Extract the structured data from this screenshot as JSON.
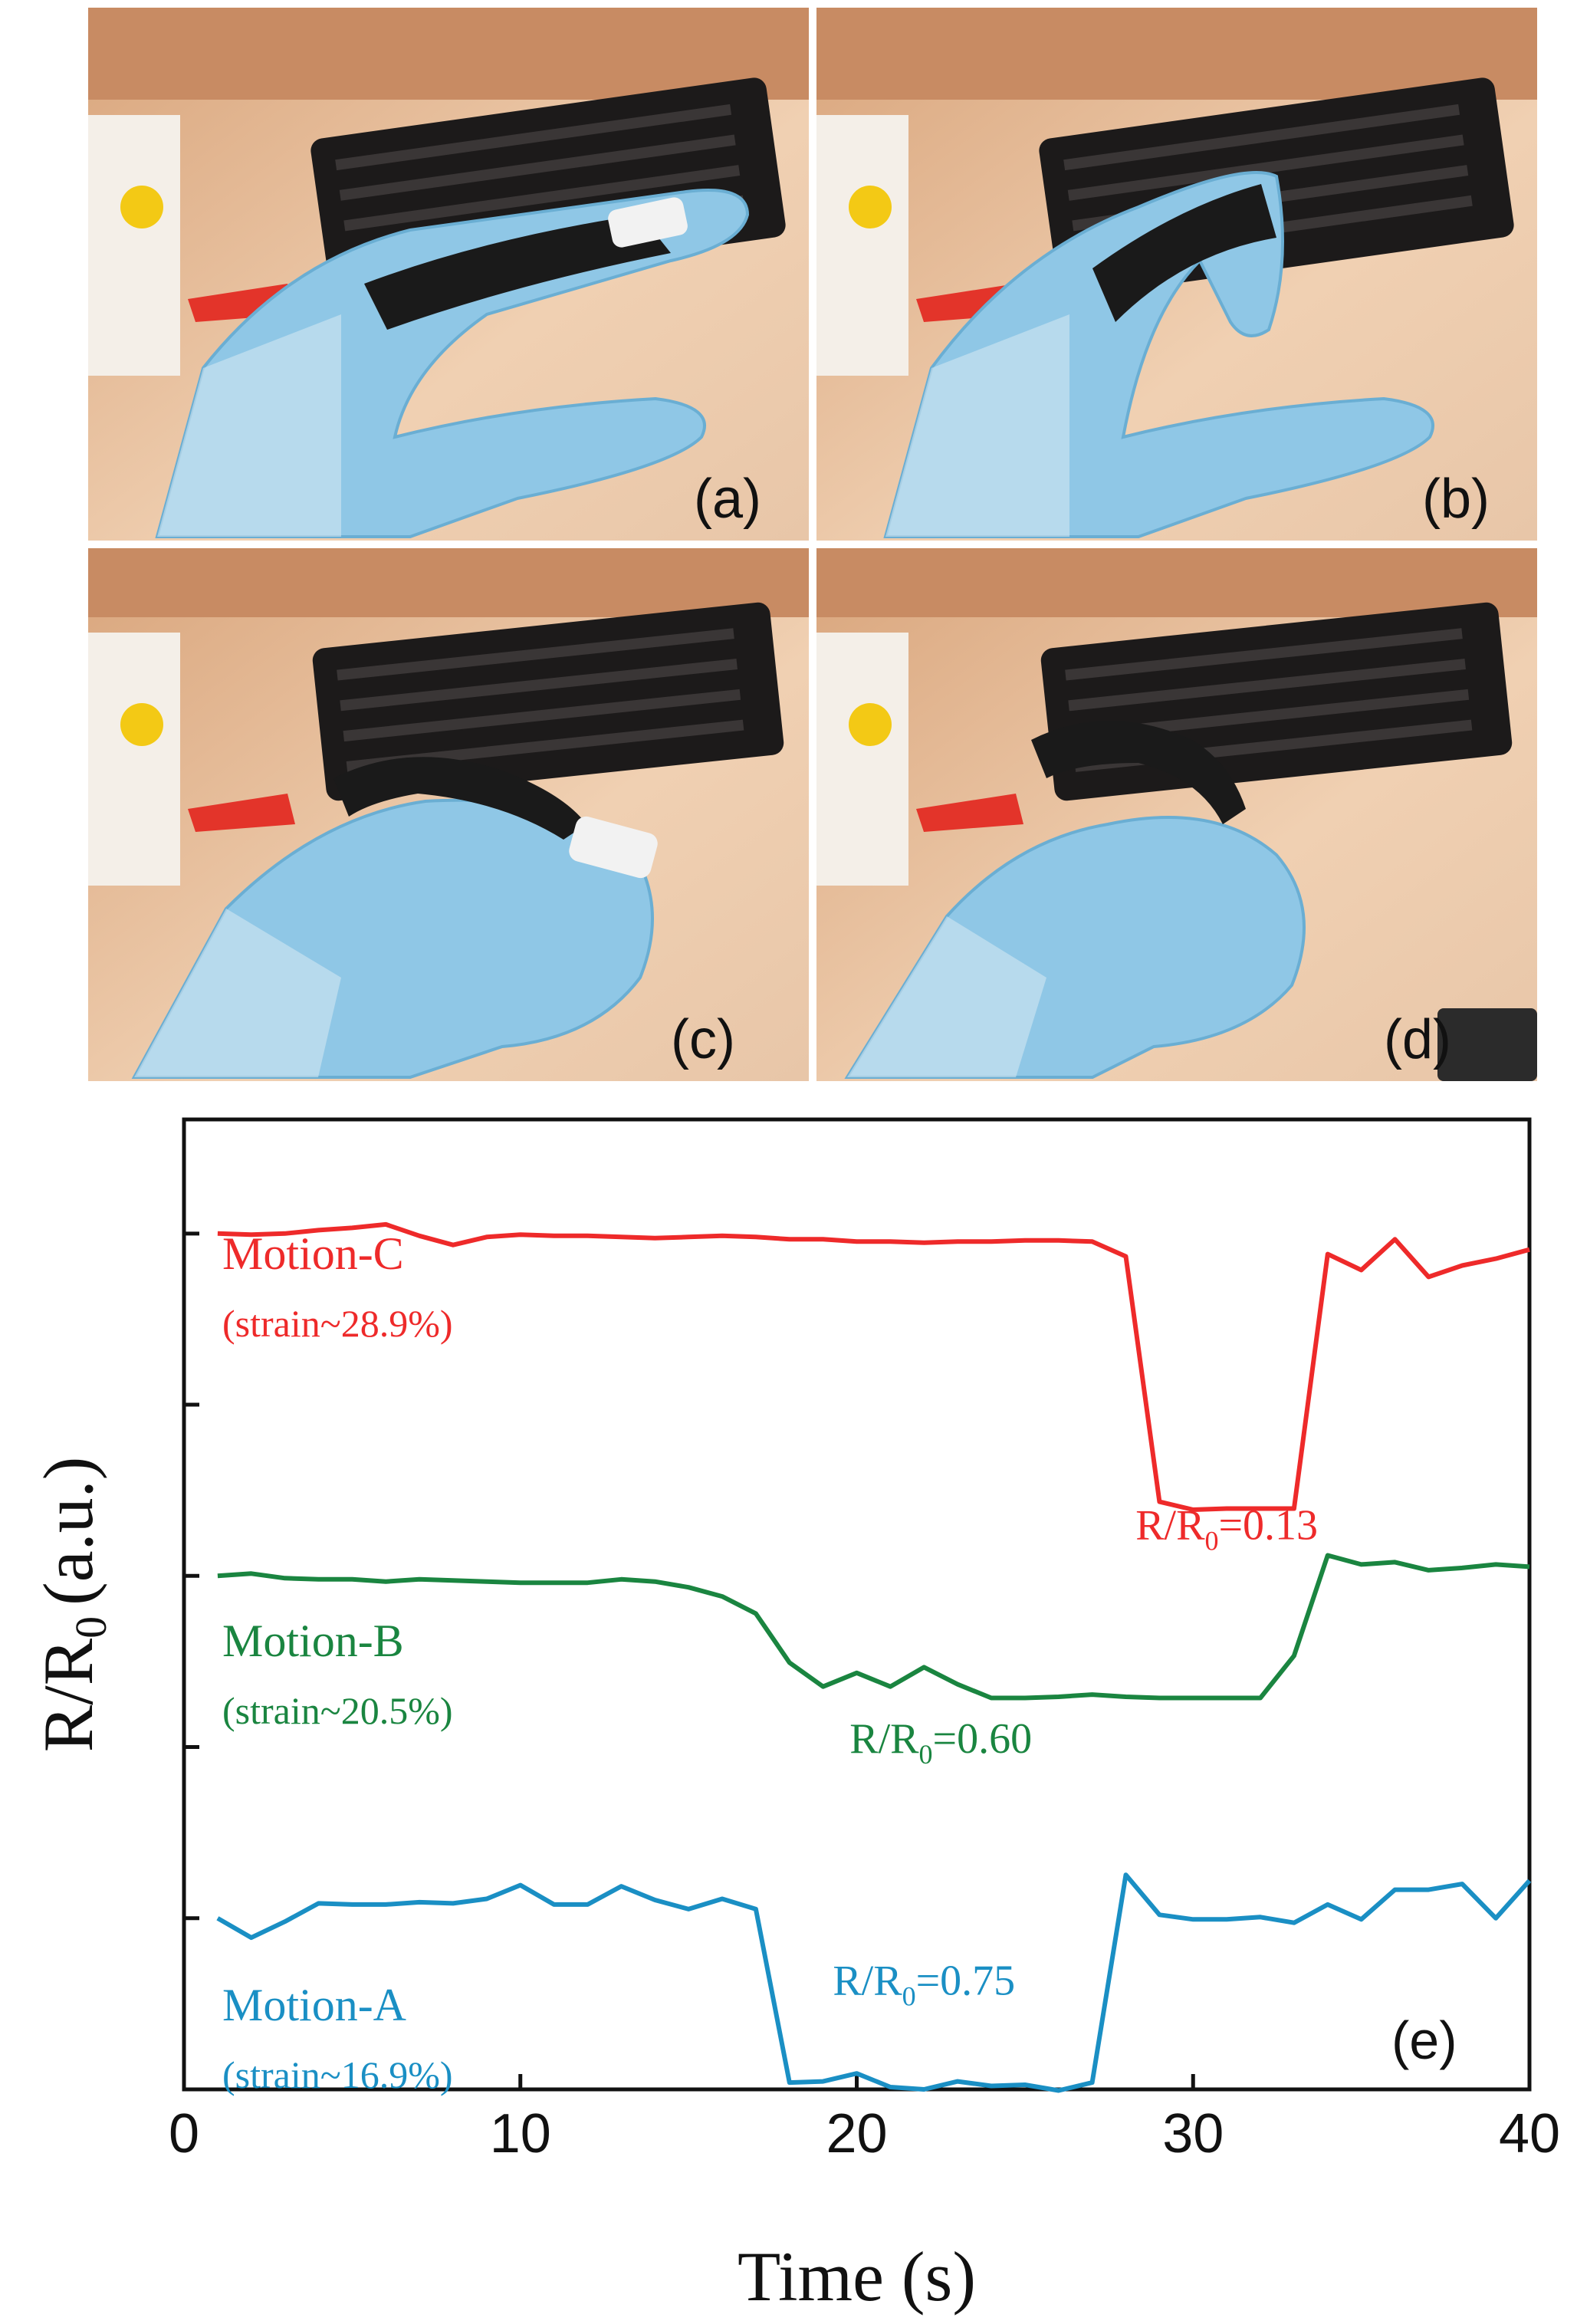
{
  "figure": {
    "panel_labels": [
      "(a)",
      "(b)",
      "(c)",
      "(d)"
    ],
    "chart_panel_label": "(e)"
  },
  "chart_data": {
    "type": "line",
    "xlabel": "Time (s)",
    "ylabel": "R/R",
    "ylabel_sub": "0",
    "ylabel_unit": "(a.u.)",
    "xlim": [
      0,
      40
    ],
    "ylim": [
      0,
      8.5
    ],
    "xticks": [
      0,
      10,
      20,
      30,
      40
    ],
    "ytick_values": [
      1.5,
      3.0,
      4.5,
      6.0,
      7.5
    ],
    "show_ytick_labels": false,
    "grid": false,
    "series": [
      {
        "name": "Motion-C",
        "strain": "(strain~28.9%)",
        "color": "#ee2a2a",
        "annotation": {
          "text": "R/R",
          "sub": "0",
          "value": "=0.13",
          "x": 31,
          "y": 4.82
        },
        "x": [
          1,
          2,
          3,
          4,
          5,
          6,
          7,
          8,
          9,
          10,
          11,
          12,
          13,
          14,
          15,
          16,
          17,
          18,
          19,
          20,
          21,
          22,
          23,
          24,
          25,
          26,
          27,
          28,
          29,
          30,
          31,
          32,
          33,
          34,
          35,
          36,
          37,
          38,
          39,
          40
        ],
        "y": [
          7.5,
          7.49,
          7.5,
          7.53,
          7.55,
          7.58,
          7.48,
          7.4,
          7.47,
          7.49,
          7.48,
          7.48,
          7.47,
          7.46,
          7.47,
          7.48,
          7.47,
          7.45,
          7.45,
          7.43,
          7.43,
          7.42,
          7.43,
          7.43,
          7.44,
          7.44,
          7.43,
          7.3,
          5.15,
          5.08,
          5.09,
          5.09,
          5.09,
          7.32,
          7.18,
          7.45,
          7.12,
          7.22,
          7.28,
          7.36
        ]
      },
      {
        "name": "Motion-B",
        "strain": "(strain~20.5%)",
        "color": "#1a8540",
        "annotation": {
          "text": "R/R",
          "sub": "0",
          "value": "=0.60",
          "x": 22.5,
          "y": 2.95
        },
        "x": [
          1,
          2,
          3,
          4,
          5,
          6,
          7,
          8,
          9,
          10,
          11,
          12,
          13,
          14,
          15,
          16,
          17,
          18,
          19,
          20,
          21,
          22,
          23,
          24,
          25,
          26,
          27,
          28,
          29,
          30,
          31,
          32,
          33,
          34,
          35,
          36,
          37,
          38,
          39,
          40
        ],
        "y": [
          4.5,
          4.52,
          4.48,
          4.47,
          4.47,
          4.45,
          4.47,
          4.46,
          4.45,
          4.44,
          4.44,
          4.44,
          4.47,
          4.45,
          4.4,
          4.32,
          4.17,
          3.74,
          3.53,
          3.65,
          3.53,
          3.7,
          3.55,
          3.43,
          3.43,
          3.44,
          3.46,
          3.44,
          3.43,
          3.43,
          3.43,
          3.43,
          3.8,
          4.68,
          4.6,
          4.62,
          4.55,
          4.57,
          4.6,
          4.58
        ]
      },
      {
        "name": "Motion-A",
        "strain": "(strain~16.9%)",
        "color": "#1a8fc4",
        "annotation": {
          "text": "R/R",
          "sub": "0",
          "value": "=0.75",
          "x": 22,
          "y": 0.83
        },
        "x": [
          1,
          2,
          3,
          4,
          5,
          6,
          7,
          8,
          9,
          10,
          11,
          12,
          13,
          14,
          15,
          16,
          17,
          18,
          19,
          20,
          21,
          22,
          23,
          24,
          25,
          26,
          27,
          28,
          29,
          30,
          31,
          32,
          33,
          34,
          35,
          36,
          37,
          38,
          39,
          40
        ],
        "y": [
          1.5,
          1.33,
          1.47,
          1.63,
          1.62,
          1.62,
          1.64,
          1.63,
          1.67,
          1.79,
          1.62,
          1.62,
          1.78,
          1.66,
          1.58,
          1.67,
          1.58,
          0.06,
          0.07,
          0.14,
          0.02,
          0.0,
          0.07,
          0.03,
          0.04,
          -0.01,
          0.06,
          1.88,
          1.53,
          1.49,
          1.49,
          1.51,
          1.46,
          1.62,
          1.49,
          1.75,
          1.75,
          1.8,
          1.5,
          1.83
        ]
      }
    ]
  }
}
